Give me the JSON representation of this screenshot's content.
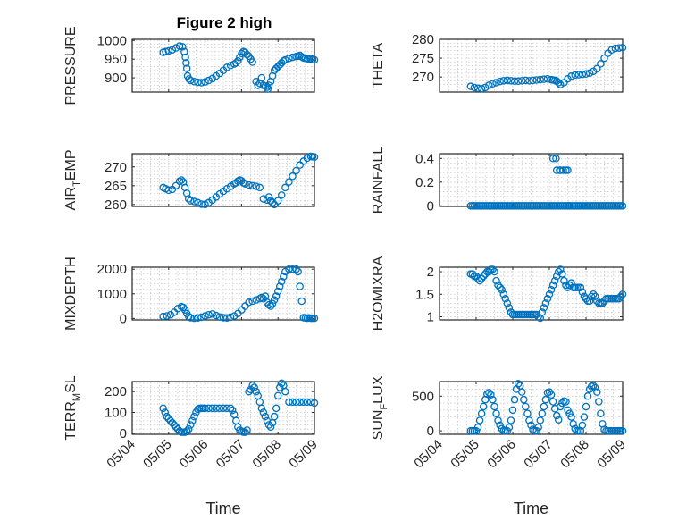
{
  "figure": {
    "title": "Figure 2 high"
  },
  "chart_data": [
    {
      "type": "scatter",
      "title": "Figure 2 high",
      "ylabel": "PRESSURE",
      "ylim": [
        862,
        1003
      ],
      "yticks": [
        900,
        950,
        1000
      ],
      "xlim": [
        "05/04",
        "05/09"
      ],
      "xticks": [
        "05/04",
        "05/05",
        "05/06",
        "05/07",
        "05/08",
        "05/09"
      ],
      "grid": "on",
      "x": [
        0.85,
        0.92,
        1.0,
        1.1,
        1.2,
        1.3,
        1.38,
        1.43,
        1.46,
        1.48,
        1.5,
        1.52,
        1.56,
        1.6,
        1.7,
        1.8,
        1.9,
        2.0,
        2.1,
        2.2,
        2.3,
        2.4,
        2.5,
        2.6,
        2.7,
        2.8,
        2.85,
        2.9,
        2.95,
        3.0,
        3.05,
        3.1,
        3.15,
        3.2,
        3.25,
        3.3,
        3.4,
        3.45,
        3.5,
        3.55,
        3.6,
        3.65,
        3.7,
        3.72,
        3.75,
        3.8,
        3.85,
        3.9,
        3.95,
        4.0,
        4.05,
        4.1,
        4.15,
        4.2,
        4.3,
        4.4,
        4.5,
        4.55,
        4.6,
        4.65,
        4.7,
        4.75,
        4.8,
        4.85,
        4.9,
        4.95,
        5.0
      ],
      "y": [
        968,
        970,
        972,
        975,
        980,
        985,
        983,
        970,
        955,
        940,
        925,
        905,
        897,
        893,
        890,
        888,
        887,
        889,
        893,
        898,
        905,
        912,
        920,
        928,
        933,
        937,
        940,
        945,
        955,
        965,
        970,
        968,
        962,
        958,
        950,
        942,
        890,
        880,
        885,
        900,
        880,
        878,
        875,
        870,
        880,
        890,
        905,
        920,
        925,
        930,
        935,
        940,
        945,
        948,
        952,
        955,
        957,
        958,
        960,
        956,
        953,
        952,
        951,
        950,
        952,
        949,
        948
      ]
    },
    {
      "type": "scatter",
      "ylabel": "THETA",
      "ylim": [
        266,
        280
      ],
      "yticks": [
        270,
        275,
        280
      ],
      "xlim": [
        "05/04",
        "05/09"
      ],
      "xticks": [
        "05/04",
        "05/05",
        "05/06",
        "05/07",
        "05/08",
        "05/09"
      ],
      "grid": "on",
      "x": [
        0.85,
        0.95,
        1.05,
        1.15,
        1.25,
        1.35,
        1.45,
        1.55,
        1.65,
        1.75,
        1.85,
        1.95,
        2.05,
        2.15,
        2.25,
        2.35,
        2.45,
        2.55,
        2.65,
        2.75,
        2.85,
        2.95,
        3.05,
        3.1,
        3.15,
        3.2,
        3.25,
        3.3,
        3.4,
        3.5,
        3.6,
        3.7,
        3.8,
        3.9,
        4.0,
        4.1,
        4.2,
        4.3,
        4.4,
        4.5,
        4.6,
        4.7,
        4.8,
        4.9,
        5.0
      ],
      "y": [
        267.5,
        267.2,
        267.0,
        266.9,
        267.2,
        267.8,
        268.2,
        268.5,
        268.8,
        269.0,
        269.1,
        269.0,
        268.9,
        268.9,
        269.0,
        269.1,
        269.0,
        269.1,
        269.2,
        269.3,
        269.4,
        269.5,
        269.3,
        269.2,
        269.1,
        268.9,
        268.5,
        268.0,
        268.5,
        269.5,
        270.2,
        270.5,
        270.6,
        270.7,
        270.8,
        271.0,
        271.5,
        272.2,
        273.5,
        275.0,
        276.3,
        277.2,
        277.6,
        277.7,
        277.8
      ]
    },
    {
      "type": "scatter",
      "ylabel": "AIR_TEMP",
      "ylim": [
        259.5,
        273.5
      ],
      "yticks": [
        260,
        265,
        270
      ],
      "xlim": [
        "05/04",
        "05/09"
      ],
      "xticks": [
        "05/04",
        "05/05",
        "05/06",
        "05/07",
        "05/08",
        "05/09"
      ],
      "grid": "on",
      "x": [
        0.85,
        0.92,
        1.0,
        1.1,
        1.2,
        1.3,
        1.35,
        1.4,
        1.45,
        1.5,
        1.55,
        1.6,
        1.7,
        1.8,
        1.9,
        2.0,
        2.1,
        2.2,
        2.3,
        2.4,
        2.5,
        2.6,
        2.7,
        2.8,
        2.85,
        2.9,
        2.95,
        3.0,
        3.05,
        3.1,
        3.2,
        3.3,
        3.4,
        3.5,
        3.6,
        3.7,
        3.75,
        3.8,
        3.85,
        3.9,
        4.0,
        4.1,
        4.2,
        4.3,
        4.4,
        4.5,
        4.6,
        4.7,
        4.8,
        4.9,
        4.95,
        5.0
      ],
      "y": [
        264.5,
        264.2,
        263.8,
        264.0,
        265.0,
        266.2,
        266.5,
        266.0,
        264.5,
        263.0,
        261.5,
        261.0,
        260.8,
        260.5,
        260.1,
        260.0,
        260.5,
        261.2,
        262.0,
        262.8,
        263.5,
        264.2,
        264.8,
        265.5,
        265.8,
        266.2,
        266.5,
        266.3,
        265.8,
        265.5,
        265.2,
        265.0,
        264.8,
        264.5,
        261.5,
        261.2,
        262.0,
        261.0,
        260.5,
        260.0,
        261.0,
        262.5,
        264.5,
        266.0,
        267.5,
        269.0,
        270.5,
        271.5,
        272.3,
        272.8,
        272.7,
        272.6
      ]
    },
    {
      "type": "scatter",
      "ylabel": "RAINFALL",
      "ylim": [
        -0.005,
        0.44
      ],
      "yticks": [
        0,
        0.2,
        0.4
      ],
      "xlim": [
        "05/04",
        "05/09"
      ],
      "xticks": [
        "05/04",
        "05/05",
        "05/06",
        "05/07",
        "05/08",
        "05/09"
      ],
      "grid": "on",
      "x": [
        0.85,
        0.9,
        0.95,
        1.0,
        1.05,
        1.1,
        1.15,
        1.2,
        1.25,
        1.3,
        1.35,
        1.4,
        1.45,
        1.5,
        1.55,
        1.6,
        1.65,
        1.7,
        1.75,
        1.8,
        1.85,
        1.9,
        1.95,
        2.0,
        2.05,
        2.1,
        2.15,
        2.2,
        2.25,
        2.3,
        2.35,
        2.4,
        2.45,
        2.5,
        2.55,
        2.6,
        2.65,
        2.7,
        2.75,
        2.8,
        2.85,
        2.9,
        2.95,
        3.0,
        3.05,
        3.1,
        3.15,
        3.2,
        3.25,
        3.3,
        3.35,
        3.4,
        3.45,
        3.5,
        3.55,
        3.6,
        3.65,
        3.7,
        3.75,
        3.8,
        3.85,
        3.9,
        3.95,
        4.0,
        4.05,
        4.1,
        4.15,
        4.2,
        4.25,
        4.3,
        4.35,
        4.4,
        4.45,
        4.5,
        4.55,
        4.6,
        4.65,
        4.7,
        4.75,
        4.8,
        4.85,
        4.9,
        4.95,
        5.0,
        3.1,
        3.18,
        3.2,
        3.28,
        3.3,
        3.38,
        3.45,
        3.5,
        3.52
      ],
      "y": [
        0,
        0,
        0,
        0,
        0,
        0,
        0,
        0,
        0,
        0,
        0,
        0,
        0,
        0,
        0,
        0,
        0,
        0,
        0,
        0,
        0,
        0,
        0,
        0,
        0,
        0,
        0,
        0,
        0,
        0,
        0,
        0,
        0,
        0,
        0,
        0,
        0,
        0,
        0,
        0,
        0,
        0,
        0,
        0,
        0,
        0,
        0,
        0,
        0,
        0,
        0,
        0,
        0,
        0,
        0,
        0,
        0,
        0,
        0,
        0,
        0,
        0,
        0,
        0,
        0,
        0,
        0,
        0,
        0,
        0,
        0,
        0,
        0,
        0,
        0,
        0,
        0,
        0,
        0,
        0,
        0,
        0,
        0,
        0,
        0.4,
        0.4,
        0.3,
        0.3,
        0.3,
        0.3,
        0.3,
        0.3,
        0
      ]
    },
    {
      "type": "scatter",
      "ylabel": "MIXDEPTH",
      "ylim": [
        -60,
        2080
      ],
      "yticks": [
        0,
        1000,
        2000
      ],
      "xlim": [
        "05/04",
        "05/09"
      ],
      "xticks": [
        "05/04",
        "05/05",
        "05/06",
        "05/07",
        "05/08",
        "05/09"
      ],
      "grid": "on",
      "x": [
        0.85,
        0.95,
        1.05,
        1.15,
        1.25,
        1.35,
        1.4,
        1.45,
        1.5,
        1.55,
        1.6,
        1.7,
        1.8,
        1.9,
        2.0,
        2.1,
        2.2,
        2.3,
        2.4,
        2.5,
        2.6,
        2.7,
        2.8,
        2.9,
        3.0,
        3.1,
        3.2,
        3.3,
        3.4,
        3.5,
        3.55,
        3.6,
        3.65,
        3.7,
        3.75,
        3.8,
        3.85,
        3.9,
        3.95,
        4.0,
        4.05,
        4.1,
        4.15,
        4.2,
        4.3,
        4.4,
        4.5,
        4.55,
        4.6,
        4.65,
        4.7,
        4.75,
        4.8,
        4.85,
        4.9,
        4.95,
        5.0
      ],
      "y": [
        80,
        100,
        150,
        250,
        400,
        480,
        450,
        350,
        200,
        80,
        30,
        10,
        20,
        50,
        100,
        150,
        180,
        120,
        60,
        30,
        20,
        50,
        100,
        200,
        350,
        500,
        650,
        700,
        750,
        800,
        850,
        800,
        900,
        650,
        550,
        500,
        600,
        750,
        900,
        1100,
        1300,
        1500,
        1700,
        1900,
        2000,
        2000,
        2000,
        1900,
        1300,
        700,
        30,
        20,
        10,
        20,
        10,
        10,
        10
      ]
    },
    {
      "type": "scatter",
      "ylabel": "H2OMIXRA",
      "ylim": [
        0.93,
        2.1
      ],
      "yticks": [
        1,
        1.5,
        2
      ],
      "xlim": [
        "05/04",
        "05/09"
      ],
      "xticks": [
        "05/04",
        "05/05",
        "05/06",
        "05/07",
        "05/08",
        "05/09"
      ],
      "grid": "on",
      "x": [
        0.85,
        0.9,
        0.95,
        1.0,
        1.05,
        1.1,
        1.15,
        1.2,
        1.25,
        1.3,
        1.35,
        1.4,
        1.45,
        1.5,
        1.55,
        1.6,
        1.65,
        1.7,
        1.75,
        1.8,
        1.85,
        1.9,
        1.95,
        2.0,
        2.05,
        2.1,
        2.15,
        2.2,
        2.25,
        2.3,
        2.35,
        2.4,
        2.45,
        2.5,
        2.55,
        2.6,
        2.65,
        2.7,
        2.75,
        2.8,
        2.85,
        2.9,
        2.95,
        3.0,
        3.05,
        3.1,
        3.15,
        3.2,
        3.25,
        3.3,
        3.35,
        3.4,
        3.45,
        3.5,
        3.55,
        3.6,
        3.65,
        3.7,
        3.75,
        3.8,
        3.85,
        3.9,
        3.95,
        4.0,
        4.05,
        4.1,
        4.15,
        4.2,
        4.25,
        4.3,
        4.35,
        4.4,
        4.45,
        4.5,
        4.55,
        4.6,
        4.65,
        4.7,
        4.75,
        4.8,
        4.85,
        4.9,
        4.95,
        5.0
      ],
      "y": [
        1.95,
        1.95,
        1.9,
        1.9,
        1.85,
        1.8,
        1.85,
        1.9,
        1.95,
        2.0,
        2.0,
        2.05,
        2.05,
        2.0,
        1.8,
        1.7,
        1.65,
        1.6,
        1.5,
        1.4,
        1.3,
        1.2,
        1.1,
        1.05,
        1.05,
        1.05,
        1.05,
        1.05,
        1.05,
        1.05,
        1.05,
        1.05,
        1.05,
        1.05,
        1.05,
        1.05,
        1.05,
        1.0,
        0.97,
        1.1,
        1.2,
        1.3,
        1.4,
        1.5,
        1.6,
        1.7,
        1.8,
        1.9,
        2.0,
        2.05,
        1.95,
        1.8,
        1.7,
        1.65,
        1.7,
        1.75,
        1.65,
        1.65,
        1.65,
        1.65,
        1.65,
        1.55,
        1.45,
        1.4,
        1.35,
        1.35,
        1.45,
        1.5,
        1.45,
        1.35,
        1.3,
        1.3,
        1.3,
        1.35,
        1.4,
        1.4,
        1.4,
        1.4,
        1.4,
        1.4,
        1.4,
        1.4,
        1.45,
        1.5
      ]
    },
    {
      "type": "scatter",
      "ylabel": "TERR_MSL",
      "ylim": [
        -5,
        248
      ],
      "yticks": [
        0,
        100,
        200
      ],
      "xlim": [
        "05/04",
        "05/09"
      ],
      "xticks": [
        "05/04",
        "05/05",
        "05/06",
        "05/07",
        "05/08",
        "05/09"
      ],
      "grid": "on",
      "x": [
        0.85,
        0.9,
        0.95,
        1.0,
        1.05,
        1.1,
        1.15,
        1.2,
        1.25,
        1.3,
        1.35,
        1.4,
        1.45,
        1.5,
        1.55,
        1.6,
        1.65,
        1.7,
        1.75,
        1.8,
        1.85,
        1.9,
        1.95,
        2.0,
        2.1,
        2.2,
        2.3,
        2.4,
        2.5,
        2.6,
        2.7,
        2.75,
        2.8,
        2.85,
        2.9,
        2.95,
        3.0,
        3.05,
        3.1,
        3.15,
        3.2,
        3.25,
        3.3,
        3.35,
        3.4,
        3.45,
        3.5,
        3.55,
        3.6,
        3.65,
        3.7,
        3.75,
        3.8,
        3.85,
        3.9,
        3.95,
        4.0,
        4.05,
        4.1,
        4.15,
        4.2,
        4.3,
        4.4,
        4.5,
        4.6,
        4.7,
        4.8,
        4.9,
        5.0
      ],
      "y": [
        120,
        100,
        80,
        70,
        60,
        50,
        40,
        30,
        20,
        10,
        5,
        5,
        5,
        10,
        20,
        40,
        60,
        80,
        100,
        115,
        120,
        120,
        120,
        120,
        120,
        120,
        120,
        120,
        120,
        120,
        120,
        110,
        90,
        60,
        30,
        15,
        10,
        5,
        5,
        15,
        200,
        210,
        230,
        220,
        200,
        180,
        150,
        120,
        100,
        80,
        60,
        40,
        30,
        50,
        80,
        120,
        180,
        220,
        240,
        230,
        200,
        150,
        150,
        150,
        150,
        150,
        150,
        150,
        145
      ]
    },
    {
      "type": "scatter",
      "ylabel": "SUN_FLUX",
      "ylim": [
        -50,
        710
      ],
      "yticks": [
        0,
        500
      ],
      "xlim": [
        "05/04",
        "05/09"
      ],
      "xticks": [
        "05/04",
        "05/05",
        "05/06",
        "05/07",
        "05/08",
        "05/09"
      ],
      "grid": "on",
      "x": [
        0.85,
        0.9,
        0.95,
        1.0,
        1.05,
        1.1,
        1.15,
        1.2,
        1.25,
        1.3,
        1.35,
        1.4,
        1.45,
        1.5,
        1.55,
        1.6,
        1.65,
        1.7,
        1.75,
        1.8,
        1.85,
        1.9,
        1.95,
        2.0,
        2.05,
        2.1,
        2.15,
        2.2,
        2.25,
        2.3,
        2.35,
        2.4,
        2.45,
        2.5,
        2.55,
        2.6,
        2.65,
        2.7,
        2.75,
        2.8,
        2.85,
        2.9,
        2.95,
        3.0,
        3.05,
        3.1,
        3.15,
        3.2,
        3.25,
        3.3,
        3.35,
        3.4,
        3.45,
        3.5,
        3.55,
        3.6,
        3.65,
        3.7,
        3.75,
        3.8,
        3.85,
        3.9,
        3.95,
        4.0,
        4.05,
        4.1,
        4.15,
        4.2,
        4.25,
        4.3,
        4.35,
        4.4,
        4.45,
        4.5,
        4.55,
        4.6,
        4.65,
        4.7,
        4.75,
        4.8,
        4.85,
        4.9,
        4.95,
        5.0
      ],
      "y": [
        0,
        0,
        0,
        0,
        50,
        150,
        250,
        350,
        450,
        530,
        550,
        520,
        450,
        350,
        250,
        150,
        80,
        30,
        0,
        0,
        0,
        50,
        150,
        300,
        450,
        600,
        680,
        650,
        560,
        450,
        350,
        250,
        150,
        80,
        20,
        0,
        0,
        50,
        150,
        250,
        350,
        450,
        550,
        560,
        520,
        420,
        320,
        220,
        160,
        350,
        400,
        430,
        420,
        300,
        250,
        200,
        100,
        30,
        0,
        0,
        0,
        80,
        200,
        350,
        500,
        600,
        640,
        650,
        620,
        560,
        420,
        250,
        100,
        20,
        0,
        0,
        0,
        0,
        0,
        0,
        0,
        0,
        0,
        0
      ]
    }
  ]
}
